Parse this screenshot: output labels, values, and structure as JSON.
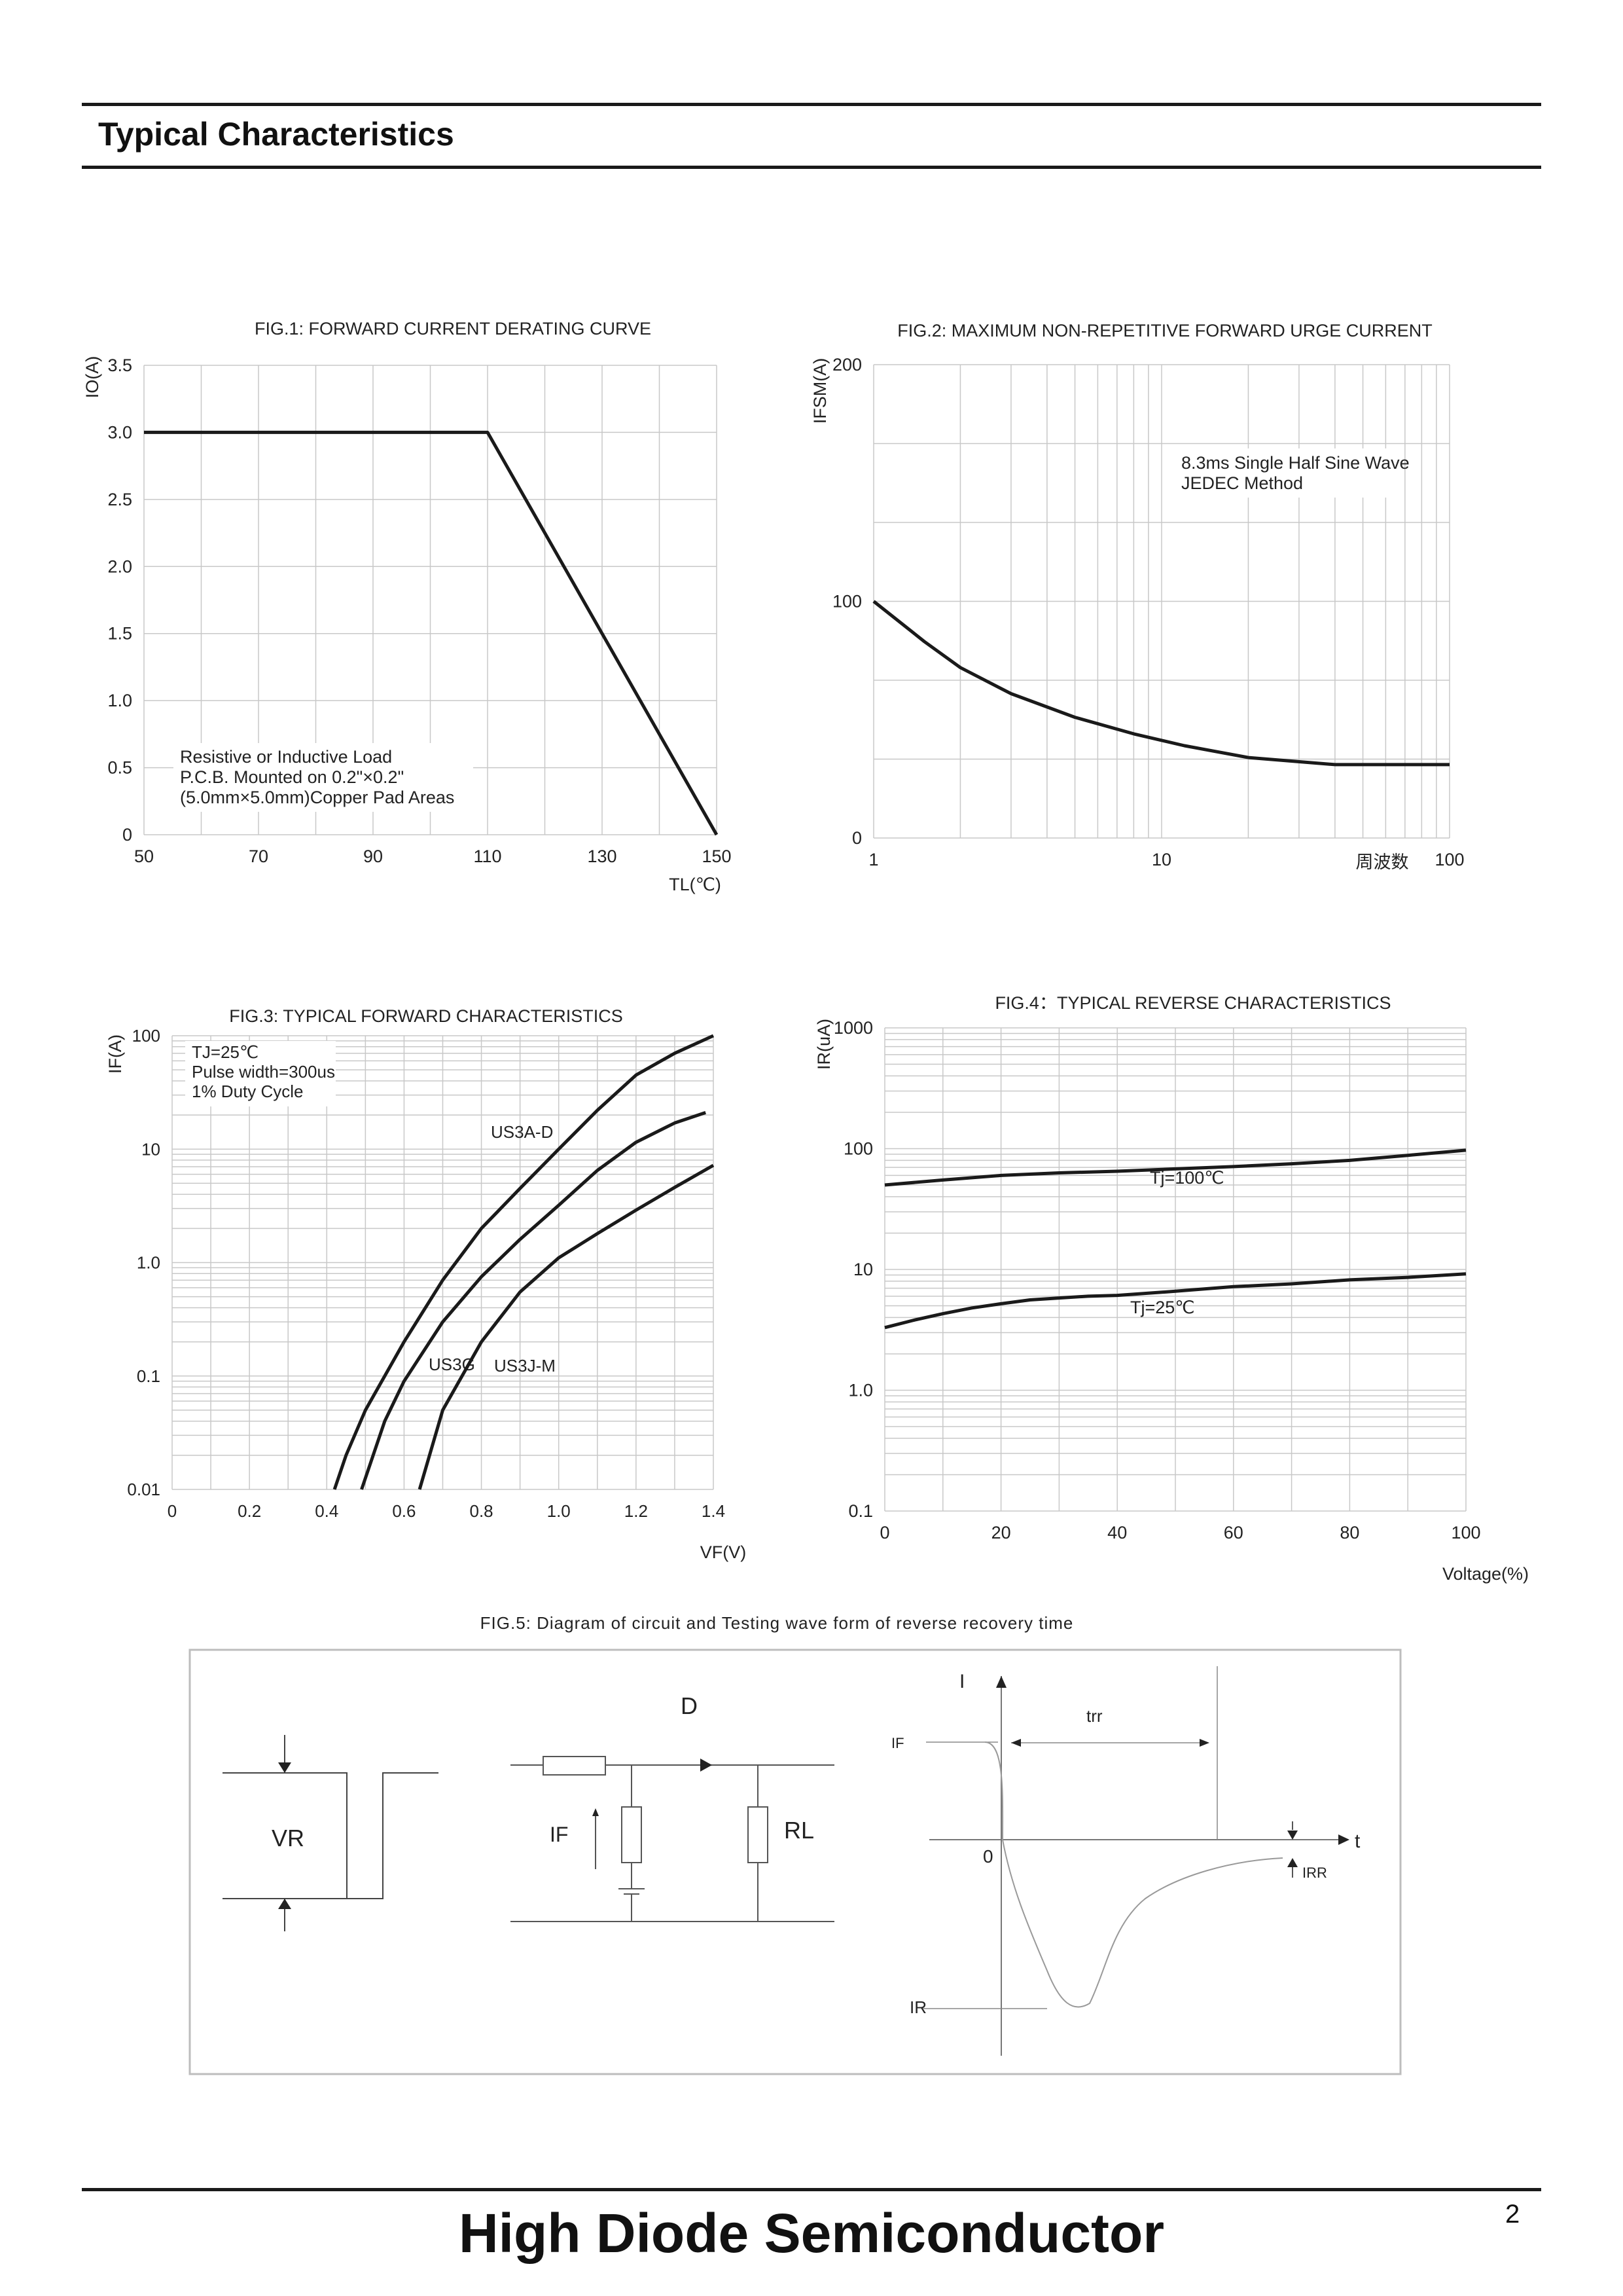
{
  "header": {
    "section_title": "Typical Characteristics"
  },
  "footer": {
    "company": "High Diode Semiconductor",
    "page_number": "2"
  },
  "colors": {
    "curve": "#1a1a1a",
    "grid": "#c8c8c8",
    "text": "#222222"
  },
  "chart_data": [
    {
      "id": "fig1",
      "type": "line",
      "title": "FIG.1: FORWARD CURRENT  DERATING CURVE",
      "xlabel": "TL(℃)",
      "ylabel": "IO(A)",
      "xlim": [
        50,
        150
      ],
      "ylim": [
        0,
        3.5
      ],
      "xticks": [
        "50",
        "70",
        "90",
        "110",
        "130",
        "150"
      ],
      "yticks": [
        "0",
        "0.5",
        "1.0",
        "1.5",
        "2.0",
        "2.5",
        "3.0",
        "3.5"
      ],
      "series": [
        {
          "name": "derating",
          "x": [
            50,
            110,
            150
          ],
          "y": [
            3.0,
            3.0,
            0
          ]
        }
      ],
      "notes": [
        "Resistive or Inductive Load",
        "P.C.B. Mounted on 0.2\"×0.2\"",
        "(5.0mm×5.0mm)Copper Pad Areas"
      ]
    },
    {
      "id": "fig2",
      "type": "line",
      "title": "FIG.2: MAXIMUM NON-REPETITIVE FORWARD URGE CURRENT",
      "xlabel": "周波数",
      "ylabel": "IFSM(A)",
      "xscale": "log",
      "xlim": [
        1,
        100
      ],
      "ylim": [
        0,
        200
      ],
      "xticks": [
        "1",
        "10",
        "100"
      ],
      "yticks": [
        "0",
        "100",
        "200"
      ],
      "series": [
        {
          "name": "IFSM",
          "x": [
            1,
            1.5,
            2,
            3,
            5,
            8,
            12,
            20,
            40,
            100
          ],
          "y": [
            100,
            83,
            72,
            61,
            51,
            44,
            39,
            34,
            31,
            31
          ]
        }
      ],
      "notes": [
        "8.3ms Single Half Sine Wave",
        "JEDEC Method"
      ]
    },
    {
      "id": "fig3",
      "type": "line",
      "title": "FIG.3: TYPICAL FORWARD CHARACTERISTICS",
      "xlabel": "VF(V)",
      "ylabel": "IF(A)",
      "yscale": "log",
      "xlim": [
        0,
        1.4
      ],
      "ylim": [
        0.01,
        100
      ],
      "xticks": [
        "0",
        "0.2",
        "0.4",
        "0.6",
        "0.8",
        "1.0",
        "1.2",
        "1.4"
      ],
      "yticks": [
        "0.01",
        "0.1",
        "1.0",
        "10",
        "100"
      ],
      "series": [
        {
          "name": "US3A-D",
          "x": [
            0.42,
            0.45,
            0.5,
            0.6,
            0.7,
            0.8,
            0.9,
            1.0,
            1.1,
            1.2,
            1.3,
            1.4
          ],
          "y": [
            0.01,
            0.02,
            0.05,
            0.2,
            0.7,
            2.0,
            4.5,
            10,
            22,
            45,
            70,
            100
          ]
        },
        {
          "name": "US3G",
          "x": [
            0.49,
            0.55,
            0.6,
            0.7,
            0.8,
            0.9,
            1.0,
            1.1,
            1.2,
            1.3,
            1.38
          ],
          "y": [
            0.01,
            0.04,
            0.09,
            0.3,
            0.75,
            1.6,
            3.2,
            6.5,
            11.5,
            17,
            21
          ]
        },
        {
          "name": "US3J-M",
          "x": [
            0.64,
            0.7,
            0.8,
            0.9,
            1.0,
            1.1,
            1.2,
            1.3,
            1.4
          ],
          "y": [
            0.01,
            0.05,
            0.2,
            0.55,
            1.1,
            1.8,
            2.9,
            4.6,
            7.2
          ]
        }
      ],
      "notes": [
        "TJ=25℃",
        "Pulse width=300us",
        "1% Duty Cycle"
      ]
    },
    {
      "id": "fig4",
      "type": "line",
      "title": "FIG.4：TYPICAL REVERSE CHARACTERISTICS",
      "xlabel": "Voltage(%)",
      "ylabel": "IR(uA)",
      "yscale": "log",
      "xlim": [
        0,
        100
      ],
      "ylim": [
        0.1,
        1000
      ],
      "xticks": [
        "0",
        "20",
        "40",
        "60",
        "80",
        "100"
      ],
      "yticks": [
        "0.1",
        "1.0",
        "10",
        "100",
        "1000"
      ],
      "series": [
        {
          "name": "Tj=100℃",
          "x": [
            0,
            10,
            20,
            30,
            40,
            50,
            60,
            70,
            80,
            90,
            100
          ],
          "y": [
            50,
            55,
            60,
            63,
            65,
            68,
            71,
            75,
            80,
            88,
            97
          ]
        },
        {
          "name": "Tj=25℃",
          "x": [
            0,
            5,
            10,
            15,
            20,
            25,
            30,
            35,
            40,
            50,
            60,
            70,
            80,
            90,
            100
          ],
          "y": [
            3.3,
            3.8,
            4.3,
            4.8,
            5.2,
            5.6,
            5.8,
            6.0,
            6.1,
            6.6,
            7.2,
            7.6,
            8.2,
            8.6,
            9.2
          ]
        }
      ]
    }
  ],
  "fig5": {
    "title": "FIG.5: Diagram of circuit and Testing wave form of reverse recovery time",
    "labels": {
      "vr": "VR",
      "diode": "D",
      "if": "IF",
      "rl": "RL",
      "i_axis": "I",
      "if_level": "IF",
      "trr": "trr",
      "t_axis": "t",
      "zero": "0",
      "irr": "IRR",
      "ir": "IR"
    }
  }
}
